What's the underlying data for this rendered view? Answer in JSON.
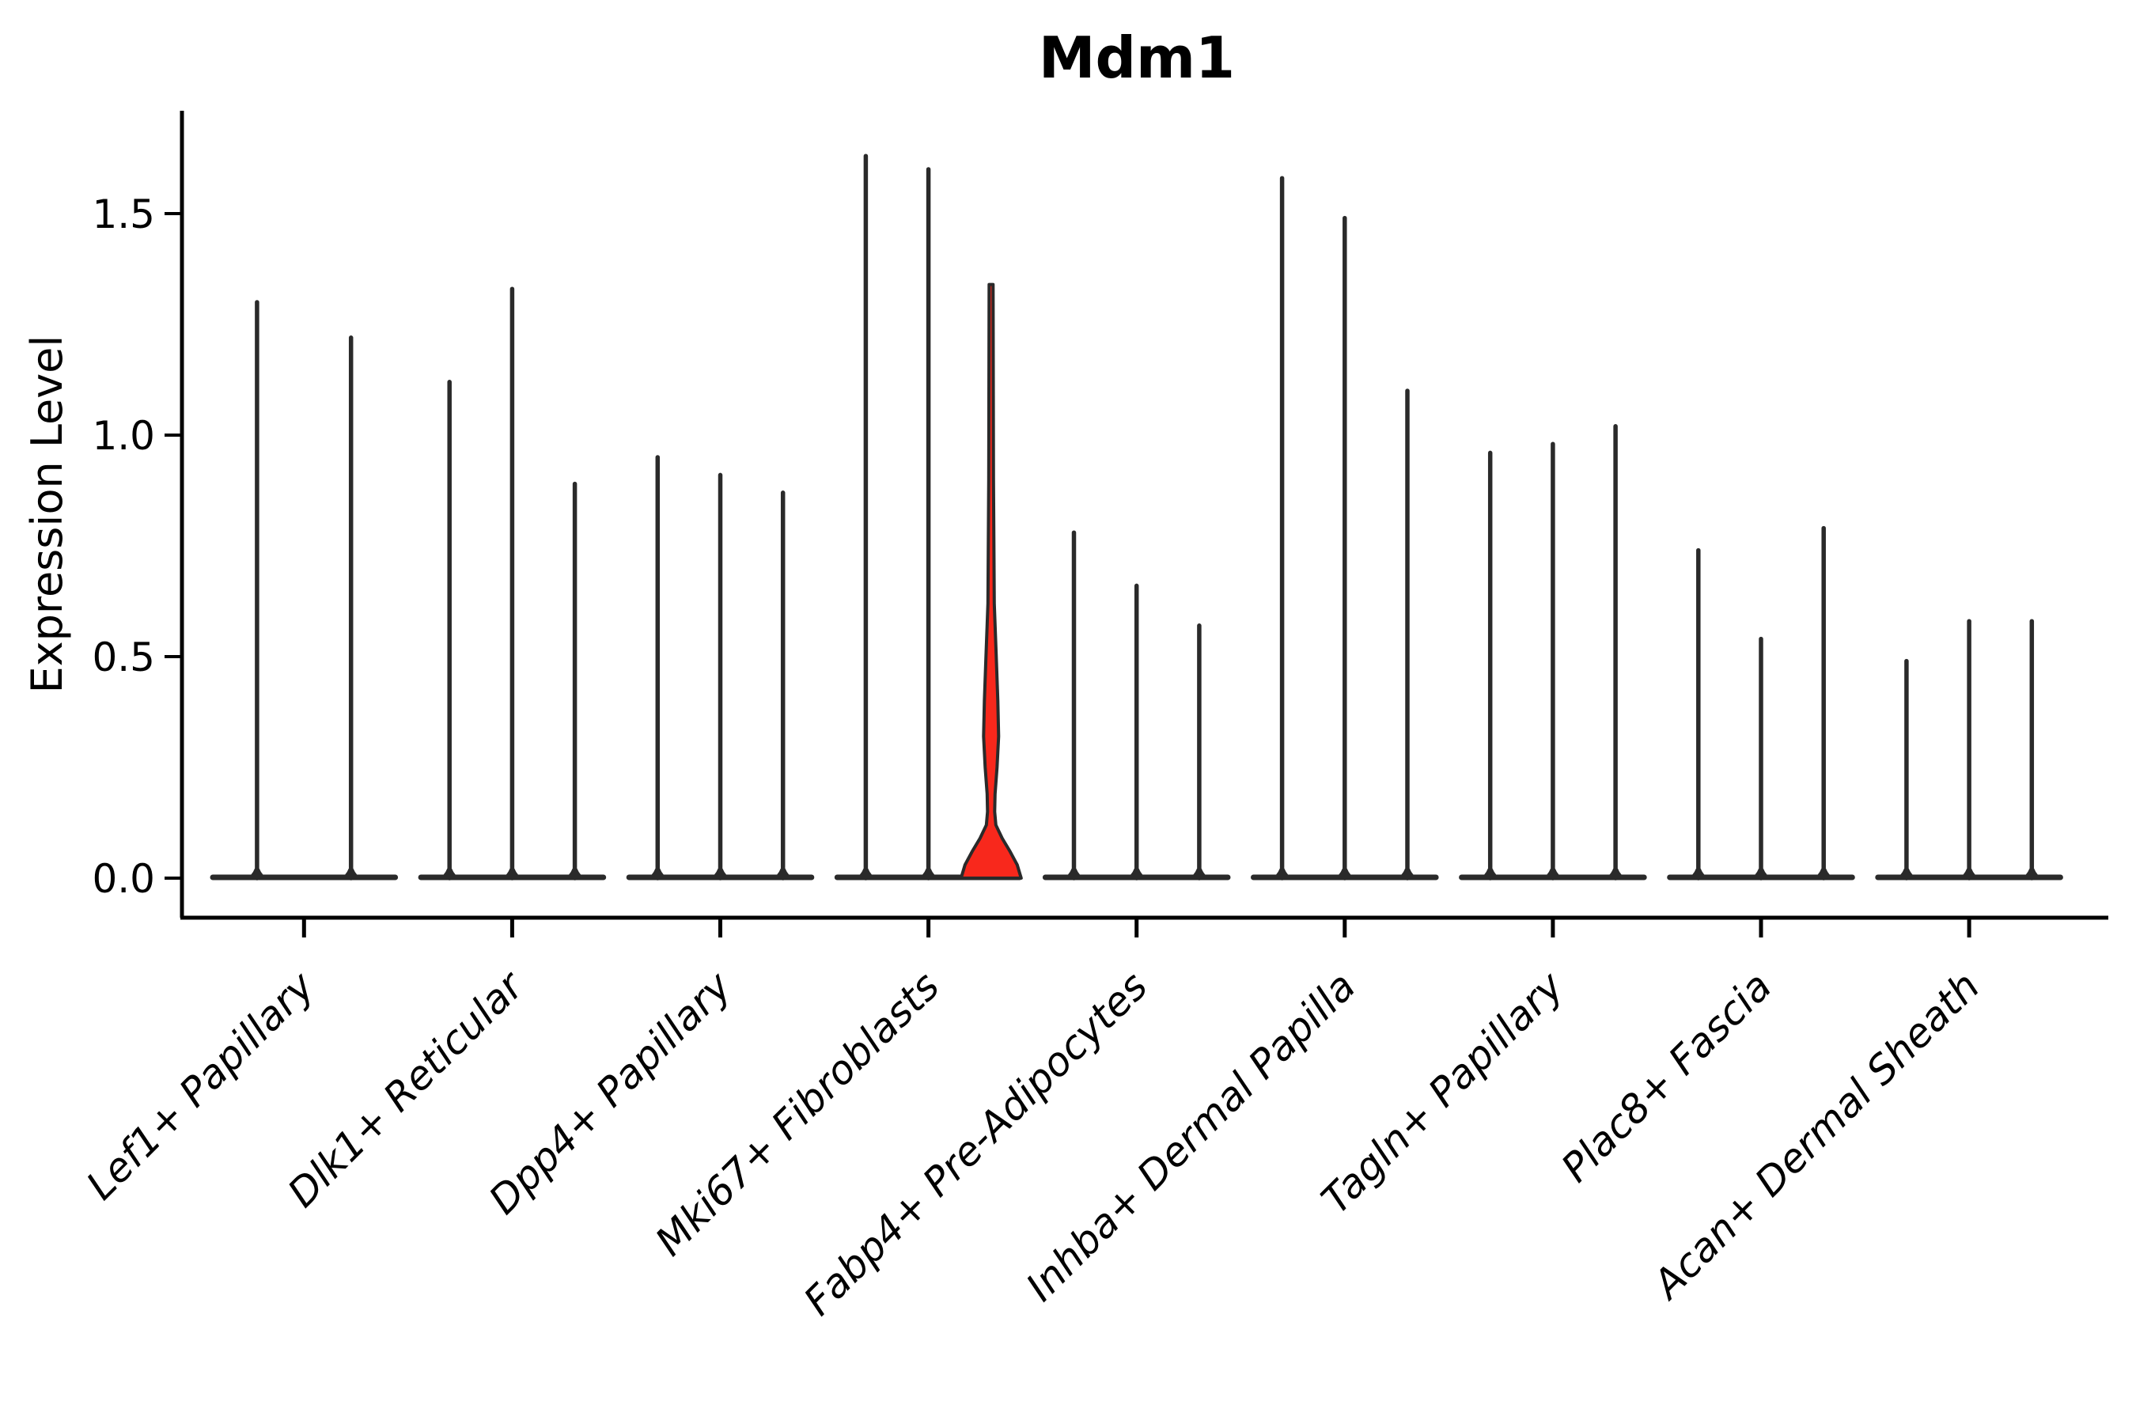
{
  "chart_data": {
    "type": "violin",
    "title": "Mdm1",
    "ylabel": "Expression Level",
    "xlabel": "",
    "ytick_labels": [
      "0.0",
      "0.5",
      "1.0",
      "1.5"
    ],
    "yticks": [
      0.0,
      0.5,
      1.0,
      1.5
    ],
    "ylim": [
      0,
      1.73
    ],
    "grid": false,
    "legend": "none",
    "categories": [
      "Lef1+ Papillary",
      "Dlk1+ Reticular",
      "Dpp4+ Papillary",
      "Mki67+ Fibroblasts",
      "Fabp4+ Pre-Adipocytes",
      "Inhba+ Dermal Papilla",
      "Tagln+ Papillary",
      "Plac8+ Fascia",
      "Acan+ Dermal Sheath"
    ],
    "groups": [
      {
        "category": "Lef1+ Papillary",
        "violin_max": [
          1.3,
          1.22
        ],
        "highlight": [
          false,
          false
        ]
      },
      {
        "category": "Dlk1+ Reticular",
        "violin_max": [
          1.12,
          1.33,
          0.89
        ],
        "highlight": [
          false,
          false,
          false
        ]
      },
      {
        "category": "Dpp4+ Papillary",
        "violin_max": [
          0.95,
          0.91,
          0.87
        ],
        "highlight": [
          false,
          false,
          false
        ]
      },
      {
        "category": "Mki67+ Fibroblasts",
        "violin_max": [
          1.63,
          1.6,
          1.34
        ],
        "highlight": [
          false,
          false,
          true
        ]
      },
      {
        "category": "Fabp4+ Pre-Adipocytes",
        "violin_max": [
          0.78,
          0.66,
          0.57
        ],
        "highlight": [
          false,
          false,
          false
        ]
      },
      {
        "category": "Inhba+ Dermal Papilla",
        "violin_max": [
          1.58,
          1.49,
          1.1
        ],
        "highlight": [
          false,
          false,
          false
        ]
      },
      {
        "category": "Tagln+ Papillary",
        "violin_max": [
          0.96,
          0.98,
          1.02
        ],
        "highlight": [
          false,
          false,
          false
        ]
      },
      {
        "category": "Plac8+ Fascia",
        "violin_max": [
          0.74,
          0.54,
          0.79
        ],
        "highlight": [
          false,
          false,
          false
        ]
      },
      {
        "category": "Acan+ Dermal Sheath",
        "violin_max": [
          0.49,
          0.58,
          0.58
        ],
        "highlight": [
          false,
          false,
          false
        ]
      }
    ],
    "highlighted_violin": {
      "category": "Mki67+ Fibroblasts",
      "violin_index": 2,
      "max": 1.34,
      "profile_value_halfwidth": [
        [
          1.34,
          2.5
        ],
        [
          0.9,
          3.0
        ],
        [
          0.62,
          4.0
        ],
        [
          0.5,
          6.5
        ],
        [
          0.4,
          8.5
        ],
        [
          0.32,
          9.5
        ],
        [
          0.25,
          7.5
        ],
        [
          0.19,
          5.0
        ],
        [
          0.15,
          4.5
        ],
        [
          0.12,
          6.0
        ],
        [
          0.09,
          14.0
        ],
        [
          0.06,
          24.0
        ],
        [
          0.03,
          33.0
        ],
        [
          0.0,
          38.0
        ]
      ]
    },
    "colors": {
      "outline": "#2a2a2a",
      "violin_fill": "#ffffff",
      "highlight_fill": "#f8281c",
      "background": "#ffffff",
      "axis": "#000000"
    }
  }
}
